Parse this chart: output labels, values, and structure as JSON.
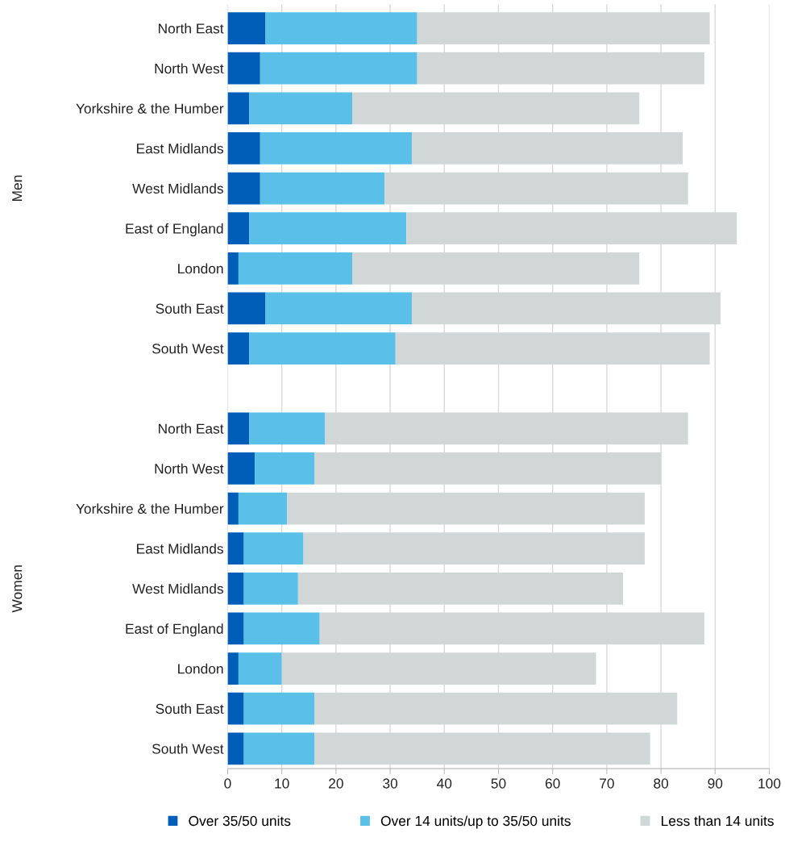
{
  "chart_data": {
    "type": "bar",
    "orientation": "horizontal",
    "stacked": true,
    "categories": [
      "North East",
      "North West",
      "Yorkshire & the Humber",
      "East Midlands",
      "West Midlands",
      "East of England",
      "London",
      "South East",
      "South West",
      null,
      "North East",
      "North West",
      "Yorkshire & the Humber",
      "East Midlands",
      "West Midlands",
      "East of England",
      "London",
      "South East",
      "South West"
    ],
    "series": [
      {
        "name": "Over 35/50 units",
        "color": "#005eb8",
        "values": [
          7,
          6,
          4,
          6,
          6,
          4,
          2,
          7,
          4,
          null,
          4,
          5,
          2,
          3,
          3,
          3,
          2,
          3,
          3
        ]
      },
      {
        "name": "Over 14 units/up to 35/50 units",
        "color": "#5bc0e8",
        "values": [
          28,
          29,
          19,
          28,
          23,
          29,
          21,
          27,
          27,
          null,
          14,
          11,
          9,
          11,
          10,
          14,
          8,
          13,
          13
        ]
      },
      {
        "name": "Less than 14 units",
        "color": "#d1d7d7",
        "values": [
          54,
          53,
          53,
          50,
          56,
          61,
          53,
          57,
          58,
          null,
          67,
          64,
          66,
          63,
          60,
          71,
          58,
          67,
          62
        ]
      }
    ],
    "xlim": [
      0,
      100
    ],
    "xticks": [
      0,
      10,
      20,
      30,
      40,
      50,
      60,
      70,
      80,
      90,
      100
    ],
    "grid": "x",
    "legend": "bottom",
    "annotations": [
      "Men",
      "Women"
    ]
  }
}
